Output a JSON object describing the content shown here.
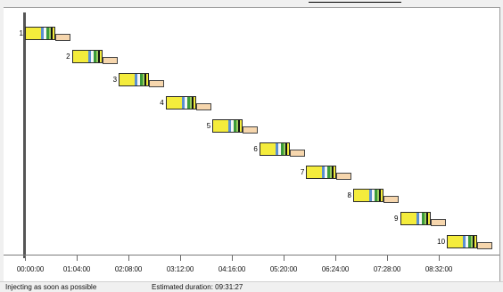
{
  "timeline": {
    "tick_labels": [
      "00:00:00",
      "01:04:00",
      "02:08:00",
      "03:12:00",
      "04:16:00",
      "05:20:00",
      "06:24:00",
      "07:28:00",
      "08:32:00"
    ]
  },
  "tasks": [
    {
      "label": "1",
      "start_min": 0
    },
    {
      "label": "2",
      "start_min": 58
    },
    {
      "label": "3",
      "start_min": 116
    },
    {
      "label": "4",
      "start_min": 174
    },
    {
      "label": "5",
      "start_min": 232
    },
    {
      "label": "6",
      "start_min": 290
    },
    {
      "label": "7",
      "start_min": 348
    },
    {
      "label": "8",
      "start_min": 406
    },
    {
      "label": "9",
      "start_min": 464
    },
    {
      "label": "10",
      "start_min": 522
    }
  ],
  "status": {
    "mode": "Injecting as soon as possible",
    "duration": "Estimated duration: 09:31:27"
  },
  "colors": {
    "task_fill": "#f4ec3c",
    "segment_blue": "#5a8fd0",
    "segment_green": "#3b9b3b",
    "segment_lightgreen": "#9ccf5e",
    "tail_fill": "#f6d6ad"
  }
}
